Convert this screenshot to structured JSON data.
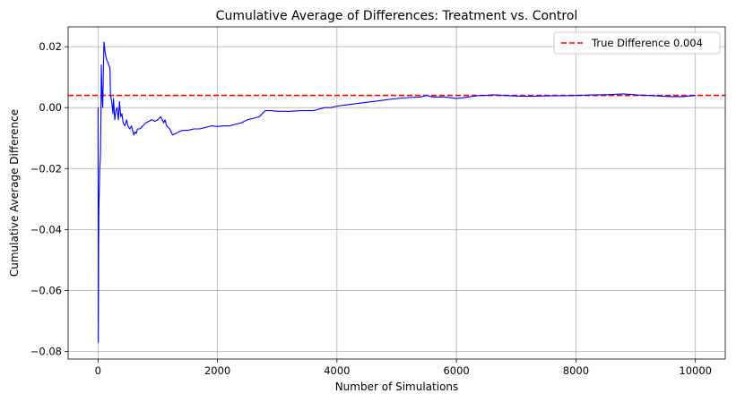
{
  "chart_data": {
    "type": "line",
    "title": "Cumulative Average of Differences: Treatment vs. Control",
    "xlabel": "Number of Simulations",
    "ylabel": "Cumulative Average Difference",
    "xlim": [
      -500,
      10500
    ],
    "ylim": [
      -0.0825,
      0.0265
    ],
    "xticks": [
      0,
      2000,
      4000,
      6000,
      8000,
      10000
    ],
    "xtick_labels": [
      "0",
      "2000",
      "4000",
      "6000",
      "8000",
      "10000"
    ],
    "yticks": [
      -0.08,
      -0.06,
      -0.04,
      -0.02,
      0.0,
      0.02
    ],
    "ytick_labels": [
      "−0.08",
      "−0.06",
      "−0.04",
      "−0.02",
      "0.00",
      "0.02"
    ],
    "grid": true,
    "legend_position": "top-right",
    "series": [
      {
        "color": "#0000ff",
        "x": [
          1,
          5,
          10,
          15,
          20,
          30,
          40,
          50,
          55,
          60,
          70,
          80,
          90,
          100,
          110,
          120,
          140,
          160,
          180,
          200,
          210,
          230,
          250,
          260,
          280,
          300,
          320,
          340,
          360,
          380,
          400,
          420,
          450,
          480,
          500,
          530,
          560,
          600,
          620,
          640,
          660,
          700,
          750,
          800,
          850,
          900,
          950,
          1000,
          1050,
          1100,
          1120,
          1150,
          1200,
          1250,
          1300,
          1350,
          1400,
          1500,
          1600,
          1700,
          1800,
          1900,
          2000,
          2100,
          2200,
          2300,
          2400,
          2500,
          2600,
          2700,
          2800,
          2900,
          3000,
          3200,
          3400,
          3600,
          3800,
          3900,
          4000,
          4200,
          4400,
          4600,
          4800,
          5000,
          5200,
          5400,
          5500,
          5600,
          5800,
          6000,
          6100,
          6200,
          6300,
          6400,
          6500,
          6600,
          6800,
          7000,
          7200,
          7400,
          7600,
          7800,
          8000,
          8200,
          8400,
          8600,
          8800,
          9000,
          9200,
          9400,
          9600,
          9800,
          10000
        ],
        "y": [
          0.0,
          -0.077,
          -0.045,
          -0.033,
          -0.028,
          -0.02,
          -0.016,
          0.0,
          0.014,
          0.01,
          0.003,
          0.0,
          0.012,
          0.0215,
          0.02,
          0.018,
          0.016,
          0.015,
          0.014,
          0.013,
          0.004,
          0.002,
          -0.002,
          0.003,
          -0.004,
          -0.001,
          0.0,
          -0.004,
          0.002,
          -0.003,
          -0.002,
          -0.005,
          -0.006,
          -0.004,
          -0.006,
          -0.007,
          -0.006,
          -0.009,
          -0.008,
          -0.0085,
          -0.007,
          -0.007,
          -0.006,
          -0.005,
          -0.0045,
          -0.004,
          -0.0045,
          -0.004,
          -0.003,
          -0.005,
          -0.004,
          -0.006,
          -0.007,
          -0.009,
          -0.0085,
          -0.008,
          -0.0075,
          -0.0075,
          -0.007,
          -0.007,
          -0.0065,
          -0.006,
          -0.0062,
          -0.006,
          -0.006,
          -0.0055,
          -0.005,
          -0.004,
          -0.0035,
          -0.003,
          -0.001,
          -0.001,
          -0.0012,
          -0.0012,
          -0.001,
          -0.001,
          0.0,
          0.0,
          0.0005,
          0.001,
          0.0015,
          0.002,
          0.0025,
          0.003,
          0.0033,
          0.0035,
          0.004,
          0.0035,
          0.0035,
          0.003,
          0.0032,
          0.0035,
          0.0038,
          0.004,
          0.004,
          0.0042,
          0.004,
          0.0038,
          0.0037,
          0.0038,
          0.0039,
          0.0039,
          0.004,
          0.0041,
          0.0042,
          0.0043,
          0.0045,
          0.0042,
          0.004,
          0.0038,
          0.0036,
          0.0036,
          0.004
        ]
      }
    ],
    "reference_line": {
      "y": 0.004,
      "color": "#ff0000",
      "style": "dashed",
      "label": "True Difference 0.004"
    }
  }
}
